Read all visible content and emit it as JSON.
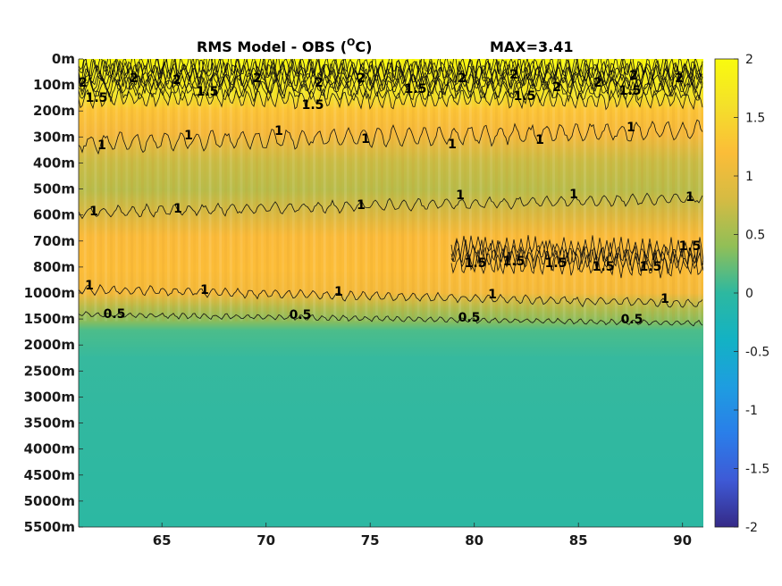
{
  "chart_data": {
    "type": "heatmap",
    "title": "RMS Model - OBS (",
    "title_unit": "O",
    "title_unit_tail": "C)",
    "max_label": "MAX=3.41",
    "x_ticks": [
      65,
      70,
      75,
      80,
      85,
      90
    ],
    "xlim": [
      61,
      91
    ],
    "y_tick_labels": [
      "0m",
      "100m",
      "200m",
      "300m",
      "400m",
      "500m",
      "600m",
      "700m",
      "800m",
      "1000m",
      "1500m",
      "2000m",
      "2500m",
      "3000m",
      "3500m",
      "4000m",
      "4500m",
      "5000m",
      "5500m"
    ],
    "colorbar": {
      "ticks": [
        "2",
        "1.5",
        "1",
        "0.5",
        "0",
        "-0.5",
        "-1",
        "-1.5",
        "-2"
      ],
      "range": [
        -2,
        2
      ],
      "colormap": "parula"
    },
    "contour_levels": [
      "0.5",
      "1",
      "1.5",
      "2"
    ],
    "colors": {
      "high": "#f9fb0e",
      "upper": "#fbb938",
      "mid": "#c2bc4a",
      "lower": "#2db8a0",
      "low": "#352a87"
    },
    "profile": [
      {
        "depth": "0m",
        "value": 2.0
      },
      {
        "depth": "100m",
        "value": 2.0
      },
      {
        "depth": "200m",
        "value": 1.3
      },
      {
        "depth": "300m",
        "value": 1.15
      },
      {
        "depth": "400m",
        "value": 0.95
      },
      {
        "depth": "500m",
        "value": 0.95
      },
      {
        "depth": "600m",
        "value": 1.2
      },
      {
        "depth": "700m",
        "value": 1.35
      },
      {
        "depth": "800m",
        "value": 1.4
      },
      {
        "depth": "1000m",
        "value": 1.05
      },
      {
        "depth": "1500m",
        "value": 0.5
      },
      {
        "depth": "2000m",
        "value": 0.3
      },
      {
        "depth": "2500m",
        "value": 0.25
      },
      {
        "depth": "3000m",
        "value": 0.2
      },
      {
        "depth": "3500m",
        "value": 0.2
      },
      {
        "depth": "4000m",
        "value": 0.2
      },
      {
        "depth": "4500m",
        "value": 0.2
      },
      {
        "depth": "5000m",
        "value": 0.2
      },
      {
        "depth": "5500m",
        "value": 0.2
      }
    ]
  }
}
